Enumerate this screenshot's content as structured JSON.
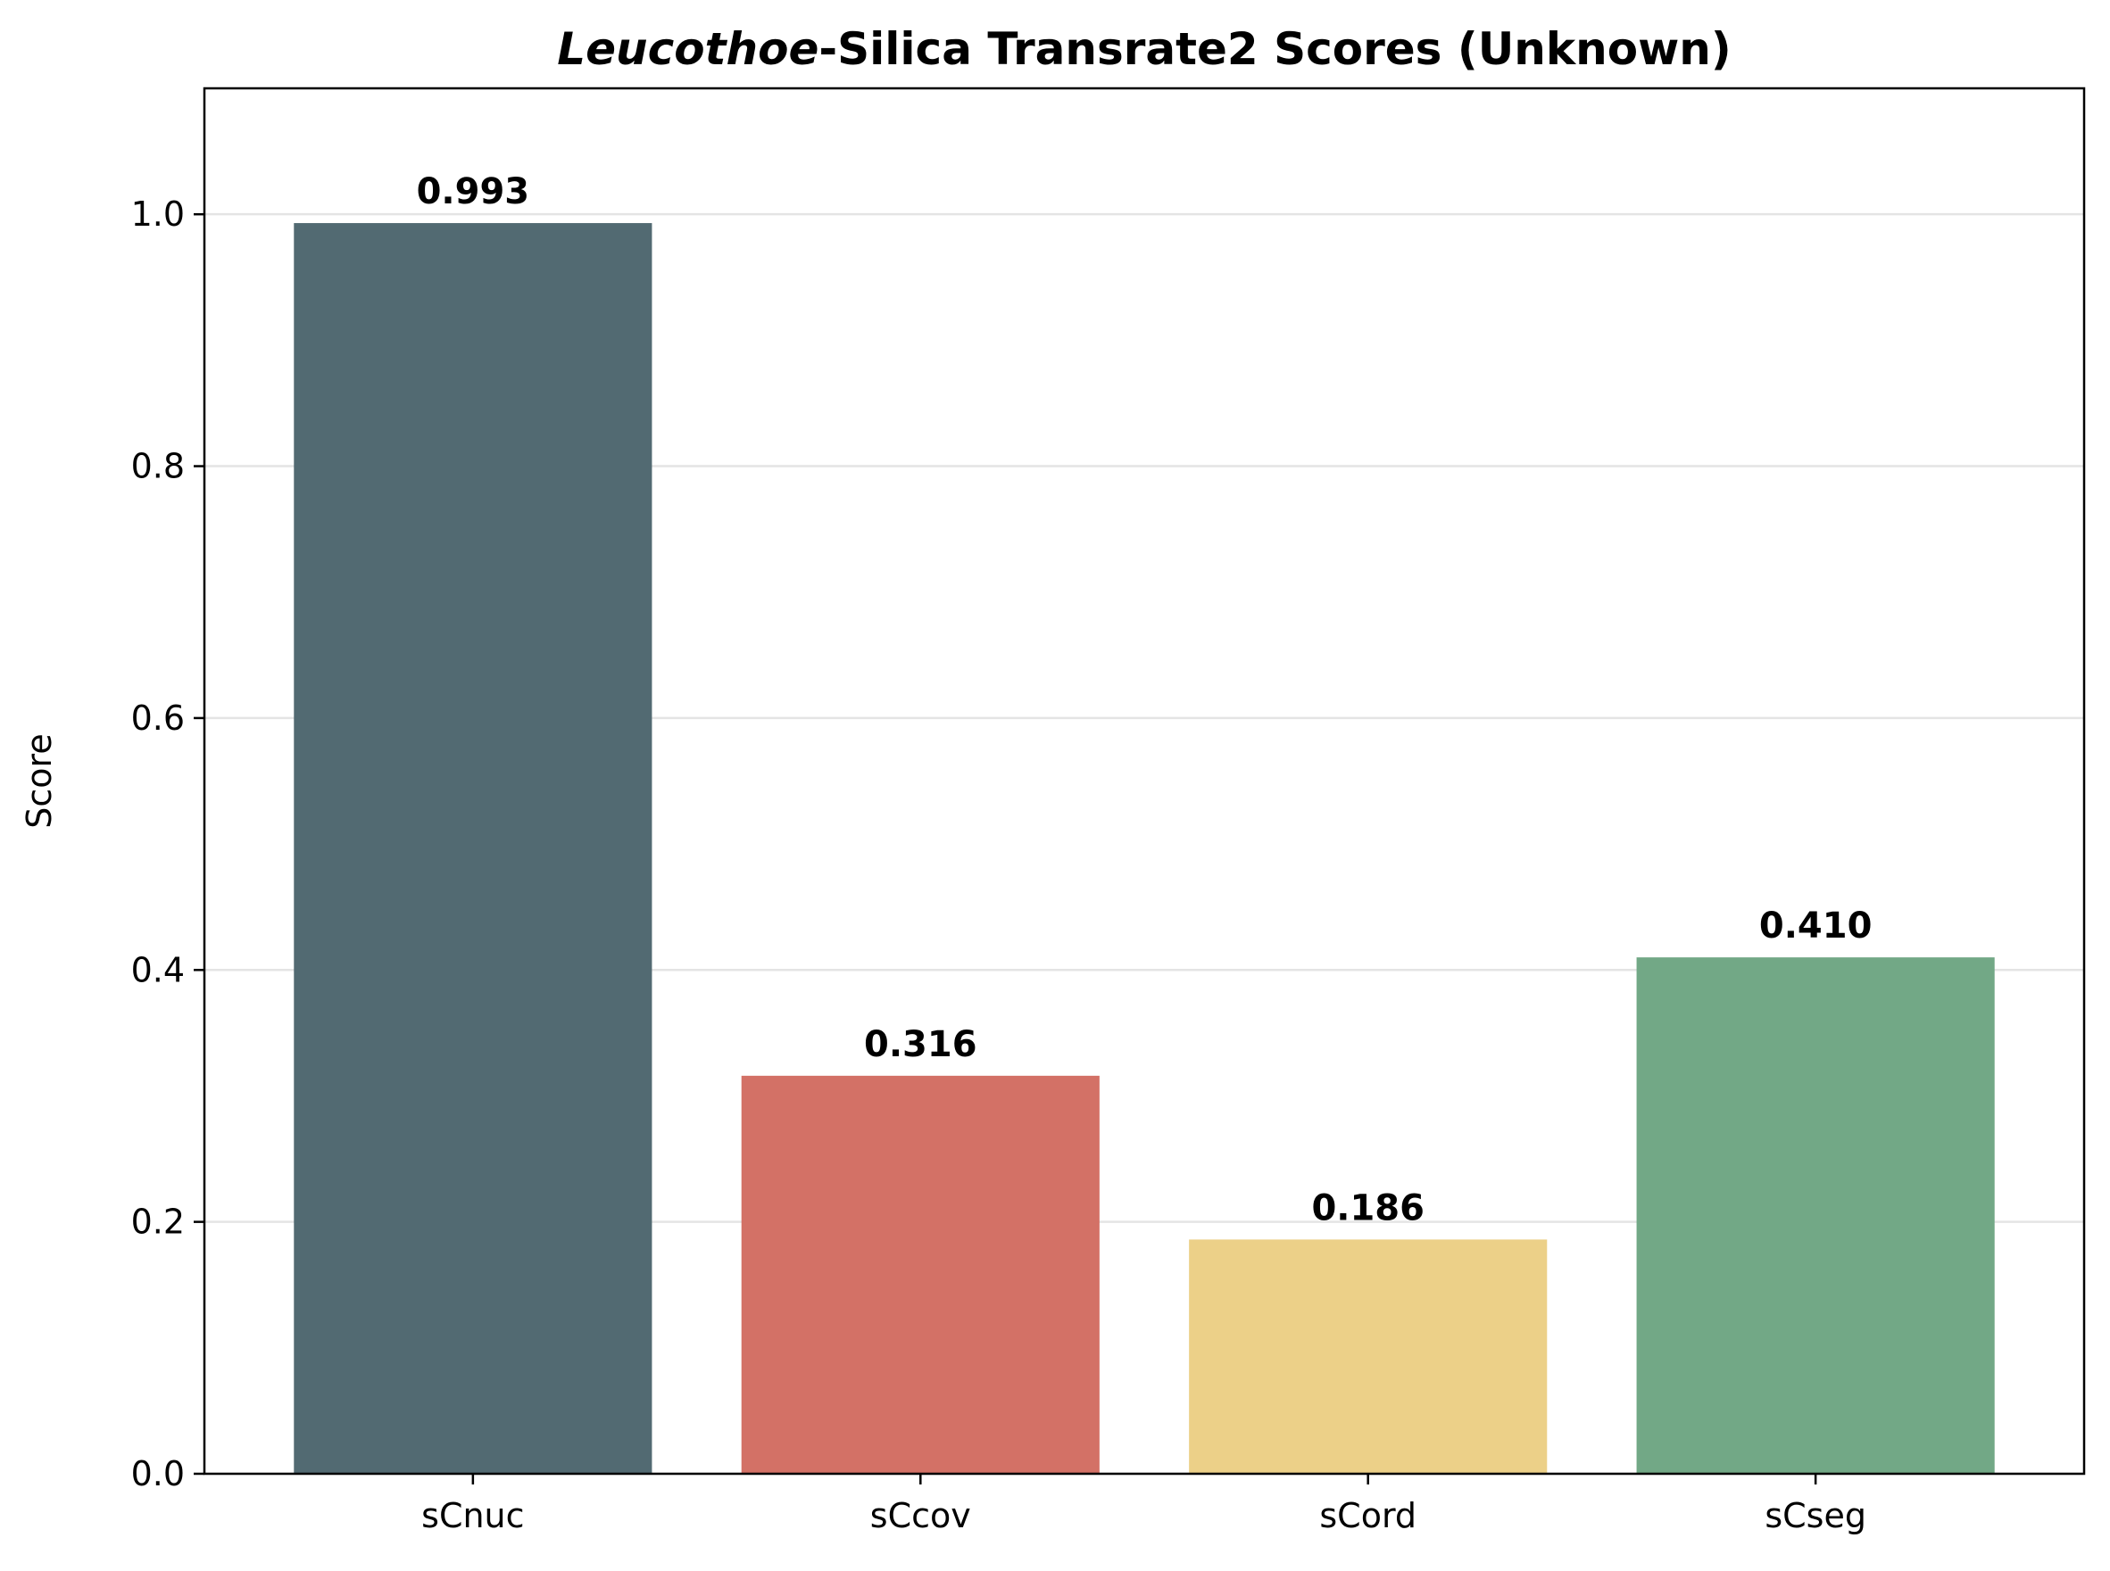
{
  "chart_data": {
    "type": "bar",
    "title_italic": "Leucothoe",
    "title_rest": "-Silica Transrate2 Scores (Unknown)",
    "xlabel": "",
    "ylabel": "Score",
    "categories": [
      "sCnuc",
      "sCcov",
      "sCord",
      "sCseg"
    ],
    "values": [
      0.993,
      0.316,
      0.186,
      0.41
    ],
    "value_labels": [
      "0.993",
      "0.316",
      "0.186",
      "0.410"
    ],
    "colors": [
      "#526a72",
      "#d37166",
      "#ecd088",
      "#72a886"
    ],
    "ylim": [
      0,
      1.1
    ],
    "yticks": [
      0.0,
      0.2,
      0.4,
      0.6,
      0.8,
      1.0
    ],
    "ytick_labels": [
      "0.0",
      "0.2",
      "0.4",
      "0.6",
      "0.8",
      "1.0"
    ],
    "grid": "y-axis",
    "legend": "none"
  }
}
